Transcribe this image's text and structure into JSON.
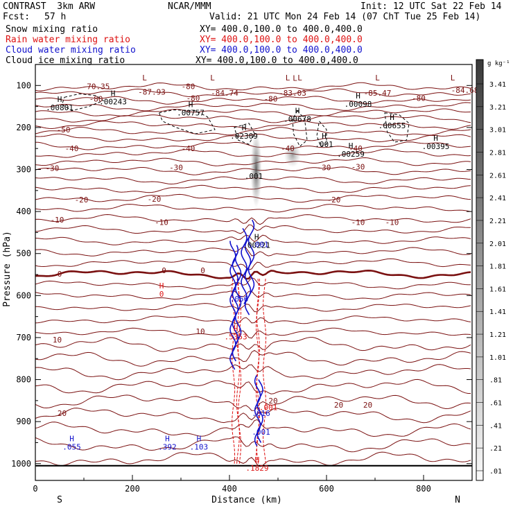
{
  "header": {
    "model": "CONTRAST  3km ARW",
    "center": "NCAR/MMM",
    "init": "Init: 12 UTC Sat 22 Feb 14",
    "fcst_label": "Fcst:",
    "fcst_value": "57 h",
    "valid": "Valid: 21 UTC Mon 24 Feb 14 (07 ChT Tue 25 Feb 14)"
  },
  "fields": [
    {
      "name": "Snow mixing ratio",
      "xy": "XY= 400.0,100.0 to 400.0,400.0",
      "color": "#000000"
    },
    {
      "name": "Rain water mixing ratio",
      "xy": "XY= 400.0,100.0 to 400.0,400.0",
      "color": "#dd1111"
    },
    {
      "name": "Cloud water mixing ratio",
      "xy": "XY= 400.0,100.0 to 400.0,400.0",
      "color": "#1111cc"
    },
    {
      "name": "Cloud ice mixing ratio",
      "xy": "XY= 400.0,100.0 to 400.0,400.0",
      "color": "#000000"
    }
  ],
  "chart_data": {
    "type": "cross-section contour",
    "xlabel": "Distance (km)",
    "ylabel": "Pressure (hPa)",
    "xlim": [
      0,
      900
    ],
    "ylim": [
      1040,
      50
    ],
    "x_ticks": [
      0,
      200,
      400,
      600,
      800
    ],
    "y_ticks": [
      100,
      200,
      300,
      400,
      500,
      600,
      700,
      800,
      900,
      1000
    ],
    "left_end_label": "S",
    "right_end_label": "N",
    "colorbar": {
      "unit": "g kg⁻¹",
      "values": [
        "3.41",
        "3.21",
        "3.01",
        "2.81",
        "2.61",
        "2.41",
        "2.21",
        "2.01",
        "1.81",
        "1.61",
        "1.41",
        "1.21",
        "1.01",
        ".81",
        ".61",
        ".41",
        ".21",
        ".01"
      ]
    },
    "temperature_labels": [
      {
        "text": "-70.35",
        "x": 125,
        "p": 102
      },
      {
        "text": "-87.93",
        "x": 240,
        "p": 115
      },
      {
        "text": "-80",
        "x": 315,
        "p": 102
      },
      {
        "text": "-84.74",
        "x": 390,
        "p": 118
      },
      {
        "text": "-83.03",
        "x": 530,
        "p": 118
      },
      {
        "text": "-85.47",
        "x": 705,
        "p": 118
      },
      {
        "text": "-84.68",
        "x": 885,
        "p": 111
      },
      {
        "text": "-80",
        "x": 125,
        "p": 132
      },
      {
        "text": "-80",
        "x": 325,
        "p": 130
      },
      {
        "text": "-80",
        "x": 485,
        "p": 132
      },
      {
        "text": "-80",
        "x": 790,
        "p": 130
      },
      {
        "text": "-50",
        "x": 58,
        "p": 205
      },
      {
        "text": "-40",
        "x": 75,
        "p": 250
      },
      {
        "text": "-40",
        "x": 315,
        "p": 250
      },
      {
        "text": "-40",
        "x": 520,
        "p": 250
      },
      {
        "text": "-40",
        "x": 660,
        "p": 250
      },
      {
        "text": "-30",
        "x": 35,
        "p": 297
      },
      {
        "text": "-30",
        "x": 290,
        "p": 295
      },
      {
        "text": "-30",
        "x": 595,
        "p": 295
      },
      {
        "text": "-30",
        "x": 665,
        "p": 293
      },
      {
        "text": "-20",
        "x": 95,
        "p": 372
      },
      {
        "text": "-20",
        "x": 245,
        "p": 370
      },
      {
        "text": "-20",
        "x": 615,
        "p": 372
      },
      {
        "text": "-10",
        "x": 45,
        "p": 420
      },
      {
        "text": "-10",
        "x": 260,
        "p": 425
      },
      {
        "text": "-10",
        "x": 665,
        "p": 425
      },
      {
        "text": "-10",
        "x": 735,
        "p": 425
      },
      {
        "text": "0",
        "x": 50,
        "p": 548
      },
      {
        "text": "0",
        "x": 265,
        "p": 540
      },
      {
        "text": "0",
        "x": 345,
        "p": 540
      },
      {
        "text": "10",
        "x": 340,
        "p": 685
      },
      {
        "text": "10",
        "x": 45,
        "p": 705
      },
      {
        "text": "20",
        "x": 55,
        "p": 880
      },
      {
        "text": "20",
        "x": 490,
        "p": 850
      },
      {
        "text": "20",
        "x": 625,
        "p": 860
      },
      {
        "text": "20",
        "x": 685,
        "p": 860
      }
    ],
    "extrema_labels": [
      {
        "mark": "L",
        "x": 225,
        "p": 91,
        "color": "#7a1010"
      },
      {
        "mark": "L",
        "x": 365,
        "p": 91,
        "color": "#7a1010"
      },
      {
        "mark": "L",
        "x": 535,
        "p": 92,
        "color": "#7a1010"
      },
      {
        "mark": "L",
        "x": 705,
        "p": 91,
        "color": "#7a1010"
      },
      {
        "mark": "L",
        "x": 860,
        "p": 91,
        "color": "#7a1010"
      },
      {
        "mark": "L",
        "x": 520,
        "p": 91,
        "color": "#7a1010"
      },
      {
        "mark": "L",
        "x": 545,
        "p": 91,
        "color": "#7a1010"
      },
      {
        "mark": "H",
        "x": 50,
        "p": 142,
        "value": ".00801",
        "color": "#000000"
      },
      {
        "mark": "H",
        "x": 160,
        "p": 128,
        "value": ".00243",
        "color": "#000000"
      },
      {
        "mark": "H",
        "x": 320,
        "p": 155,
        "value": ".00757",
        "color": "#000000"
      },
      {
        "mark": "H",
        "x": 430,
        "p": 210,
        "value": ".02309",
        "color": "#000000"
      },
      {
        "mark": "H",
        "x": 540,
        "p": 170,
        "value": ".00678",
        "color": "#000000"
      },
      {
        "mark": "H",
        "x": 665,
        "p": 134,
        "value": ".00098",
        "color": "#000000"
      },
      {
        "mark": "H",
        "x": 735,
        "p": 185,
        "value": ".00655",
        "color": "#000000"
      },
      {
        "mark": "H",
        "x": 825,
        "p": 235,
        "value": ".00395",
        "color": "#000000"
      },
      {
        "mark": "H",
        "x": 595,
        "p": 230,
        "value": ".001",
        "color": "#000000"
      },
      {
        "mark": "H",
        "x": 650,
        "p": 253,
        "value": ".00259",
        "color": "#000000"
      },
      {
        "mark": "",
        "x": 450,
        "p": 306,
        "value": ".001",
        "color": "#000000"
      },
      {
        "mark": "H",
        "x": 456,
        "p": 470,
        "value": ".00221",
        "color": "#000000"
      },
      {
        "mark": "",
        "x": 462,
        "p": 468,
        "value": ".001",
        "color": "#1111cc"
      },
      {
        "mark": "H",
        "x": 260,
        "p": 586,
        "value": "0",
        "color": "#dd1111"
      },
      {
        "mark": "",
        "x": 420,
        "p": 598,
        "value": ".056",
        "color": "#1111cc"
      },
      {
        "mark": "H",
        "x": 413,
        "p": 688,
        "value": ".5353",
        "color": "#dd1111"
      },
      {
        "mark": "",
        "x": 480,
        "p": 856,
        "value": ".001",
        "color": "#dd1111"
      },
      {
        "mark": "",
        "x": 465,
        "p": 870,
        "value": ".616",
        "color": "#1111cc"
      },
      {
        "mark": "",
        "x": 465,
        "p": 915,
        "value": ".001",
        "color": "#1111cc"
      },
      {
        "mark": "H",
        "x": 457,
        "p": 1000,
        "value": ".1829",
        "color": "#dd1111"
      },
      {
        "mark": "H",
        "x": 75,
        "p": 950,
        "value": ".055",
        "color": "#1111cc"
      },
      {
        "mark": "H",
        "x": 272,
        "p": 950,
        "value": ".392",
        "color": "#1111cc"
      },
      {
        "mark": "H",
        "x": 337,
        "p": 950,
        "value": ".103",
        "color": "#1111cc"
      }
    ]
  }
}
